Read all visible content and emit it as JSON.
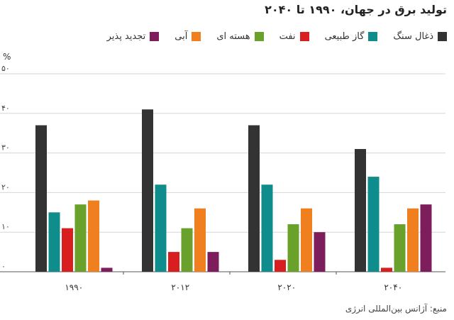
{
  "chart_data": {
    "type": "bar",
    "title": "تولید برق در جهان، ۱۹۹۰ تا ۲۰۴۰",
    "ylabel": "%",
    "categories": [
      "۱۹۹۰",
      "۲۰۱۲",
      "۲۰۲۰",
      "۲۰۴۰"
    ],
    "y_ticks": [
      0,
      10,
      20,
      30,
      40,
      50
    ],
    "y_tick_labels": [
      "۰",
      "۱۰",
      "۲۰",
      "۳۰",
      "۴۰",
      "۵۰"
    ],
    "ylim": [
      0,
      50
    ],
    "grid": true,
    "legend_position": "top",
    "series": [
      {
        "name": "ذغال سنگ",
        "color": "#333333",
        "values": [
          37,
          41,
          37,
          31
        ]
      },
      {
        "name": "گاز طبیعی",
        "color": "#0f8c8c",
        "values": [
          15,
          22,
          22,
          24
        ]
      },
      {
        "name": "نفت",
        "color": "#d81e1e",
        "values": [
          11,
          5,
          3,
          1
        ]
      },
      {
        "name": "هسته ای",
        "color": "#6aa12b",
        "values": [
          17,
          11,
          12,
          12
        ]
      },
      {
        "name": "آبی",
        "color": "#f07f1f",
        "values": [
          18,
          16,
          16,
          16
        ]
      },
      {
        "name": "تجدید پذیر",
        "color": "#7e1d5c",
        "values": [
          1,
          5,
          10,
          17
        ]
      }
    ]
  },
  "source_text": "منبع: آژانس بین‌المللی انرژی"
}
